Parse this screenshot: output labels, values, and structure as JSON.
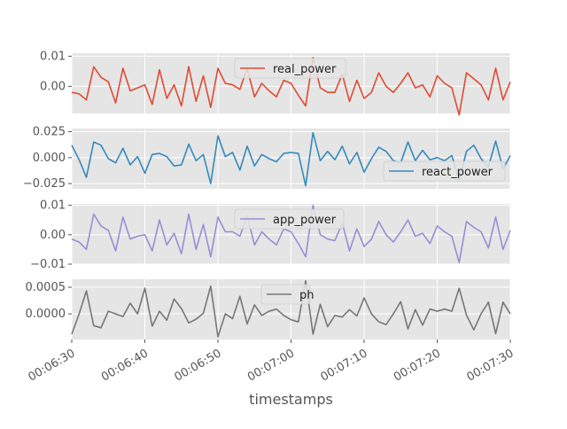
{
  "chart_data": {
    "type": "line",
    "xlabel": "timestamps",
    "x_range": [
      "00:06:30",
      "00:07:30"
    ],
    "x_ticks": [
      "00:06:30",
      "00:06:40",
      "00:06:50",
      "00:07:00",
      "00:07:10",
      "00:07:20",
      "00:07:30"
    ],
    "grid": true,
    "shared_x": true,
    "panels": [
      {
        "name": "real_power",
        "color": "#E24A33",
        "legend": "top-center",
        "ylim": [
          -0.009,
          0.011
        ],
        "yticks": [
          0.0,
          0.01
        ],
        "ytick_labels": [
          "0.00",
          "0.01"
        ],
        "values": [
          -0.002,
          -0.0025,
          -0.0045,
          0.0065,
          0.003,
          0.0015,
          -0.0055,
          0.006,
          -0.0015,
          -0.0005,
          0.0005,
          -0.006,
          0.0055,
          -0.004,
          0.0005,
          -0.0065,
          0.0065,
          -0.005,
          0.0035,
          -0.007,
          0.006,
          0.001,
          0.0005,
          -0.001,
          0.006,
          -0.0035,
          0.001,
          -0.0015,
          -0.0035,
          0.002,
          0.001,
          -0.003,
          -0.0065,
          0.0095,
          -0.0005,
          -0.002,
          -0.002,
          0.004,
          -0.005,
          0.002,
          -0.004,
          -0.002,
          0.0045,
          0.0,
          -0.002,
          0.001,
          0.0045,
          -0.0005,
          0.0005,
          -0.0035,
          0.0035,
          0.001,
          -0.0005,
          -0.0095,
          0.0045,
          0.0025,
          0.0005,
          -0.0045,
          0.006,
          -0.0045,
          0.0015
        ]
      },
      {
        "name": "react_power",
        "color": "#348ABD",
        "legend": "lower-right",
        "ylim": [
          -0.03,
          0.028
        ],
        "yticks": [
          -0.025,
          0.0,
          0.025
        ],
        "ytick_labels": [
          "−0.025",
          "0.000",
          "0.025"
        ],
        "values": [
          0.012,
          -0.002,
          -0.019,
          0.015,
          0.012,
          -0.001,
          -0.005,
          0.009,
          -0.007,
          0.001,
          -0.015,
          0.003,
          0.004,
          0.001,
          -0.008,
          -0.007,
          0.013,
          -0.003,
          0.003,
          -0.025,
          0.021,
          0.001,
          0.005,
          -0.012,
          0.011,
          -0.008,
          0.003,
          -0.001,
          -0.004,
          0.004,
          0.005,
          0.004,
          -0.027,
          0.024,
          -0.003,
          0.006,
          -0.002,
          0.011,
          -0.006,
          0.005,
          -0.014,
          -0.001,
          0.01,
          0.006,
          -0.003,
          -0.005,
          0.015,
          -0.003,
          0.007,
          -0.002,
          0.0,
          -0.003,
          0.002,
          -0.022,
          0.006,
          0.012,
          -0.001,
          -0.009,
          0.016,
          -0.011,
          0.002
        ]
      },
      {
        "name": "app_power",
        "color": "#988ED5",
        "legend": "top-center",
        "ylim": [
          -0.01,
          0.0105
        ],
        "yticks": [
          -0.01,
          0.0,
          0.01
        ],
        "ytick_labels": [
          "−0.01",
          "0.00",
          "0.01"
        ],
        "values": [
          -0.0015,
          -0.0025,
          -0.005,
          0.007,
          0.003,
          0.0015,
          -0.0055,
          0.006,
          -0.0015,
          -0.0005,
          0.0,
          -0.0055,
          0.005,
          -0.0035,
          0.0005,
          -0.0065,
          0.007,
          -0.005,
          0.0035,
          -0.0075,
          0.006,
          0.001,
          0.001,
          -0.0005,
          0.0065,
          -0.0035,
          0.001,
          -0.0015,
          -0.0035,
          0.002,
          0.001,
          -0.003,
          -0.0075,
          0.01,
          0.0,
          -0.0015,
          -0.002,
          0.004,
          -0.0055,
          0.002,
          -0.004,
          -0.0015,
          0.0045,
          0.0,
          -0.0025,
          0.001,
          0.005,
          -0.0005,
          0.0005,
          -0.003,
          0.003,
          0.001,
          -0.0005,
          -0.0095,
          0.0045,
          0.0025,
          0.001,
          -0.0045,
          0.006,
          -0.005,
          0.0015
        ]
      },
      {
        "name": "ph",
        "color": "#777777",
        "legend": "top-center",
        "ylim": [
          -0.00048,
          0.00065
        ],
        "yticks": [
          0.0,
          0.0005
        ],
        "ytick_labels": [
          "0.0000",
          "0.0005"
        ],
        "values": [
          -0.00038,
          0.0,
          0.00043,
          -0.00022,
          -0.00026,
          5e-05,
          0.0,
          -5e-05,
          0.0002,
          0.0,
          0.00048,
          -0.00023,
          5e-05,
          -0.00012,
          0.00028,
          0.0001,
          -0.00017,
          -0.0001,
          1e-05,
          0.00052,
          -0.00043,
          0.0,
          -9e-05,
          0.00033,
          -0.00019,
          0.00017,
          -3e-05,
          5e-05,
          9e-05,
          -3e-05,
          -0.00011,
          -0.00015,
          0.00062,
          -0.00038,
          0.00018,
          -0.00024,
          -3e-05,
          -6e-05,
          8e-05,
          -4e-05,
          0.0003,
          0.0,
          -0.00015,
          -0.0002,
          0.0,
          0.00023,
          -0.00028,
          8e-05,
          -0.00021,
          9e-05,
          5e-05,
          9e-05,
          5e-05,
          0.00048,
          -2e-05,
          -0.0003,
          0.0,
          0.00022,
          -0.00037,
          0.00022,
          0.0
        ]
      }
    ]
  }
}
